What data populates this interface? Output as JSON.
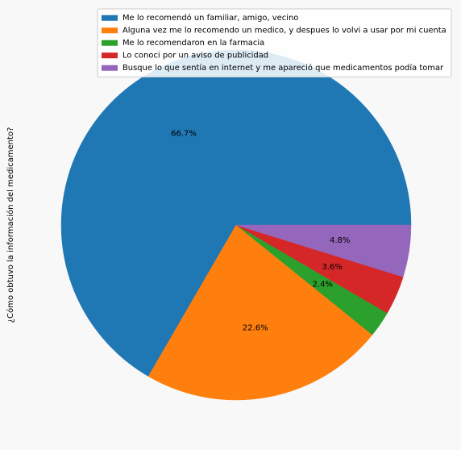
{
  "chart_data": {
    "type": "pie",
    "ylabel": "¿Cómo obtuvo la información del medicamento?",
    "legend_position": "top-right",
    "slices": [
      {
        "label": "Me lo recomendó un familiar, amigo, vecino",
        "value": 66.7,
        "pct_label": "66.7%",
        "color": "#1f77b4"
      },
      {
        "label": "Alguna vez me lo recomendo un medico, y despues lo volvi a usar por mi cuenta",
        "value": 22.6,
        "pct_label": "22.6%",
        "color": "#ff7f0e"
      },
      {
        "label": "Me lo recomendaron en la farmacia",
        "value": 2.4,
        "pct_label": "2.4%",
        "color": "#2ca02c"
      },
      {
        "label": "Lo conoci por un aviso de publicidad",
        "value": 3.6,
        "pct_label": "3.6%",
        "color": "#d62728"
      },
      {
        "label": "Busque lo que sentía en internet y me apareció que medicamentos podía tomar",
        "value": 4.8,
        "pct_label": "4.8%",
        "color": "#9467bd"
      }
    ]
  }
}
